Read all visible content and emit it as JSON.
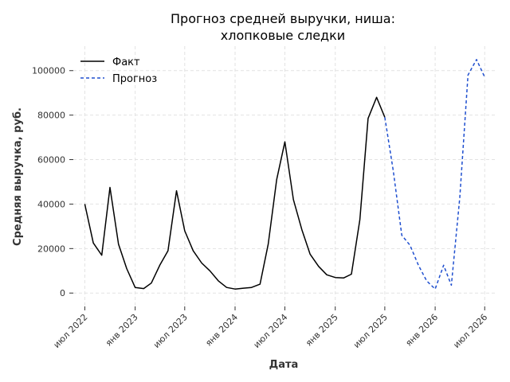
{
  "chart_data": {
    "type": "line",
    "title": [
      "Прогноз средней выручки, ниша:",
      "хлопковые следки"
    ],
    "xlabel": "Дата",
    "ylabel": "Средняя выручка, руб.",
    "grid": true,
    "legend_position": "top-left",
    "x_ticks": [
      {
        "date": "2022-07-01",
        "label": "июл 2022"
      },
      {
        "date": "2023-01-01",
        "label": "янв 2023"
      },
      {
        "date": "2023-07-01",
        "label": "июл 2023"
      },
      {
        "date": "2024-01-01",
        "label": "янв 2024"
      },
      {
        "date": "2024-07-01",
        "label": "июл 2024"
      },
      {
        "date": "2025-01-01",
        "label": "янв 2025"
      },
      {
        "date": "2025-07-01",
        "label": "июл 2025"
      },
      {
        "date": "2026-01-01",
        "label": "янв 2026"
      },
      {
        "date": "2026-07-01",
        "label": "июл 2026"
      }
    ],
    "y_ticks": [
      0,
      20000,
      40000,
      60000,
      80000,
      100000
    ],
    "xlim": [
      "2022-05-20",
      "2026-08-10"
    ],
    "ylim": [
      -6000,
      111000
    ],
    "series": [
      {
        "name": "Факт",
        "color": "#000000",
        "style": "solid",
        "points": [
          {
            "x": "2022-07-01",
            "y": 40000
          },
          {
            "x": "2022-08-01",
            "y": 22500
          },
          {
            "x": "2022-09-01",
            "y": 17000
          },
          {
            "x": "2022-10-01",
            "y": 47500
          },
          {
            "x": "2022-11-01",
            "y": 22000
          },
          {
            "x": "2022-12-01",
            "y": 11000
          },
          {
            "x": "2023-01-01",
            "y": 2500
          },
          {
            "x": "2023-02-01",
            "y": 2000
          },
          {
            "x": "2023-03-01",
            "y": 4500
          },
          {
            "x": "2023-04-01",
            "y": 12500
          },
          {
            "x": "2023-05-01",
            "y": 19000
          },
          {
            "x": "2023-06-01",
            "y": 46000
          },
          {
            "x": "2023-07-01",
            "y": 28000
          },
          {
            "x": "2023-08-01",
            "y": 19000
          },
          {
            "x": "2023-09-01",
            "y": 13500
          },
          {
            "x": "2023-10-01",
            "y": 10000
          },
          {
            "x": "2023-11-01",
            "y": 5500
          },
          {
            "x": "2023-12-01",
            "y": 2500
          },
          {
            "x": "2024-01-01",
            "y": 1800
          },
          {
            "x": "2024-02-01",
            "y": 2200
          },
          {
            "x": "2024-03-01",
            "y": 2500
          },
          {
            "x": "2024-04-01",
            "y": 4000
          },
          {
            "x": "2024-05-01",
            "y": 22000
          },
          {
            "x": "2024-06-01",
            "y": 51000
          },
          {
            "x": "2024-07-01",
            "y": 68000
          },
          {
            "x": "2024-08-01",
            "y": 42000
          },
          {
            "x": "2024-09-01",
            "y": 28500
          },
          {
            "x": "2024-10-01",
            "y": 17500
          },
          {
            "x": "2024-11-01",
            "y": 12000
          },
          {
            "x": "2024-12-01",
            "y": 8200
          },
          {
            "x": "2025-01-01",
            "y": 7000
          },
          {
            "x": "2025-02-01",
            "y": 6800
          },
          {
            "x": "2025-03-01",
            "y": 8500
          },
          {
            "x": "2025-04-01",
            "y": 33000
          },
          {
            "x": "2025-05-01",
            "y": 78500
          },
          {
            "x": "2025-06-01",
            "y": 88000
          },
          {
            "x": "2025-07-01",
            "y": 79000
          }
        ]
      },
      {
        "name": "Прогноз",
        "color": "#1f4fcf",
        "style": "dashed",
        "points": [
          {
            "x": "2025-07-01",
            "y": 79000
          },
          {
            "x": "2025-08-01",
            "y": 55000
          },
          {
            "x": "2025-09-01",
            "y": 26000
          },
          {
            "x": "2025-10-01",
            "y": 21500
          },
          {
            "x": "2025-11-01",
            "y": 12500
          },
          {
            "x": "2025-12-01",
            "y": 5500
          },
          {
            "x": "2026-01-01",
            "y": 1800
          },
          {
            "x": "2026-02-01",
            "y": 12500
          },
          {
            "x": "2026-03-01",
            "y": 3500
          },
          {
            "x": "2026-04-01",
            "y": 43000
          },
          {
            "x": "2026-05-01",
            "y": 98000
          },
          {
            "x": "2026-06-01",
            "y": 105000
          },
          {
            "x": "2026-07-01",
            "y": 97000
          }
        ]
      }
    ]
  }
}
